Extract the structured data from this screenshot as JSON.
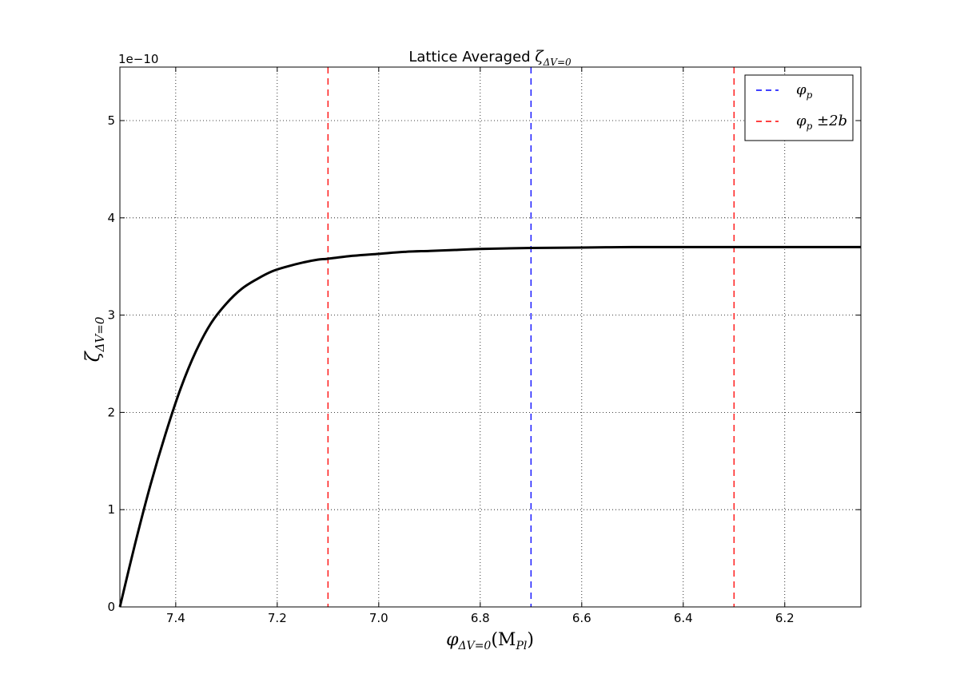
{
  "chart_data": {
    "type": "line",
    "title": "Lattice Averaged ",
    "title_math": "ζ",
    "title_math_sub": "ΔV=0",
    "xlabel_math": "φ",
    "xlabel_math_sub": "ΔV=0",
    "xlabel_rest": "(M",
    "xlabel_rest_sub": "Pl",
    "xlabel_close": ")",
    "ylabel_math": "ζ",
    "ylabel_math_sub": "ΔV=0",
    "offset_text": "1e−10",
    "x_inverted": true,
    "xlim": [
      7.51,
      6.05
    ],
    "ylim": [
      0,
      5.55
    ],
    "x_ticks": [
      7.4,
      7.2,
      7.0,
      6.8,
      6.6,
      6.4,
      6.2
    ],
    "x_tick_labels": [
      "7.4",
      "7.2",
      "7.0",
      "6.8",
      "6.6",
      "6.4",
      "6.2"
    ],
    "y_ticks": [
      0,
      1,
      2,
      3,
      4,
      5
    ],
    "y_tick_labels": [
      "0",
      "1",
      "2",
      "3",
      "4",
      "5"
    ],
    "grid": true,
    "legend_position": "top-right",
    "series": [
      {
        "color": "#000000",
        "style": "solid",
        "x": [
          7.51,
          7.48,
          7.45,
          7.42,
          7.39,
          7.36,
          7.33,
          7.3,
          7.27,
          7.24,
          7.21,
          7.18,
          7.15,
          7.12,
          7.1,
          7.05,
          7.0,
          6.95,
          6.9,
          6.85,
          6.8,
          6.7,
          6.6,
          6.5,
          6.4,
          6.3,
          6.2,
          6.1,
          6.05
        ],
        "y": [
          0.0,
          0.65,
          1.25,
          1.78,
          2.25,
          2.63,
          2.92,
          3.12,
          3.27,
          3.37,
          3.45,
          3.5,
          3.54,
          3.57,
          3.58,
          3.61,
          3.63,
          3.65,
          3.66,
          3.67,
          3.68,
          3.69,
          3.695,
          3.7,
          3.7,
          3.7,
          3.7,
          3.7,
          3.7
        ]
      }
    ],
    "vlines": [
      {
        "x": 6.7,
        "color": "#0000ff",
        "legend": 0
      },
      {
        "x": 7.1,
        "color": "#ff0000",
        "legend": 1
      },
      {
        "x": 6.3,
        "color": "#ff0000",
        "legend": 1
      }
    ],
    "legend": [
      {
        "color": "#0000ff",
        "label_math": "φ",
        "label_sub": "p",
        "label_extra": ""
      },
      {
        "color": "#ff0000",
        "label_math": "φ",
        "label_sub": "p",
        "label_extra": " ±2b"
      }
    ]
  }
}
